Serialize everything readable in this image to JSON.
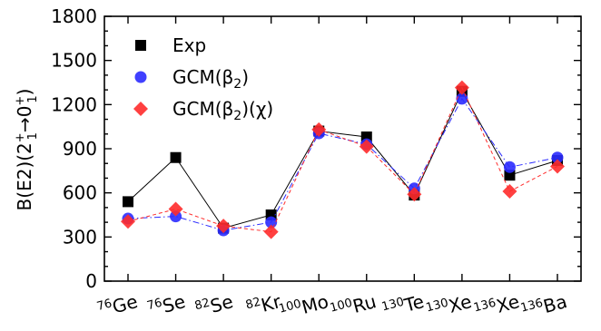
{
  "chart_data": {
    "type": "line",
    "title": "",
    "xlabel": "",
    "ylabel": {
      "main": "B(E2)(2",
      "sup1": "+",
      "sub1": "1",
      "arrow": "→0",
      "sup2": "+",
      "sub2": "1",
      "close": ")"
    },
    "ylim": [
      0,
      1800
    ],
    "yticks": [
      "0",
      "300",
      "600",
      "900",
      "1200",
      "1500",
      "1800"
    ],
    "yminor_step": 100,
    "grid": false,
    "legend_position": "top-left",
    "categories": [
      {
        "mass": "76",
        "element": "Ge"
      },
      {
        "mass": "76",
        "element": "Se"
      },
      {
        "mass": "82",
        "element": "Se"
      },
      {
        "mass": "82",
        "element": "Kr"
      },
      {
        "mass": "100",
        "element": "Mo"
      },
      {
        "mass": "100",
        "element": "Ru"
      },
      {
        "mass": "130",
        "element": "Te"
      },
      {
        "mass": "130",
        "element": "Xe"
      },
      {
        "mass": "136",
        "element": "Xe"
      },
      {
        "mass": "136",
        "element": "Ba"
      }
    ],
    "series": [
      {
        "name": "Exp",
        "legend_parts": {
          "pre": "Exp",
          "sub": "",
          "post": ""
        },
        "values": [
          540,
          840,
          360,
          450,
          1020,
          980,
          585,
          1290,
          720,
          820
        ],
        "color": "#000000",
        "marker": "square",
        "line": "solid"
      },
      {
        "name": "GCM(β2)",
        "legend_parts": {
          "pre": "GCM(β",
          "sub": "2",
          "post": ")"
        },
        "values": [
          425,
          440,
          345,
          400,
          1005,
          930,
          630,
          1240,
          775,
          840
        ],
        "color": "#2b2bff",
        "marker": "circle",
        "line": "dashdot"
      },
      {
        "name": "GCM(β2)(χ)",
        "legend_parts": {
          "pre": "GCM(β",
          "sub": "2",
          "post": ")(χ)"
        },
        "values": [
          405,
          490,
          375,
          335,
          1030,
          915,
          590,
          1315,
          610,
          780
        ],
        "color": "#ff2b2b",
        "marker": "diamond",
        "line": "dashed"
      }
    ]
  }
}
